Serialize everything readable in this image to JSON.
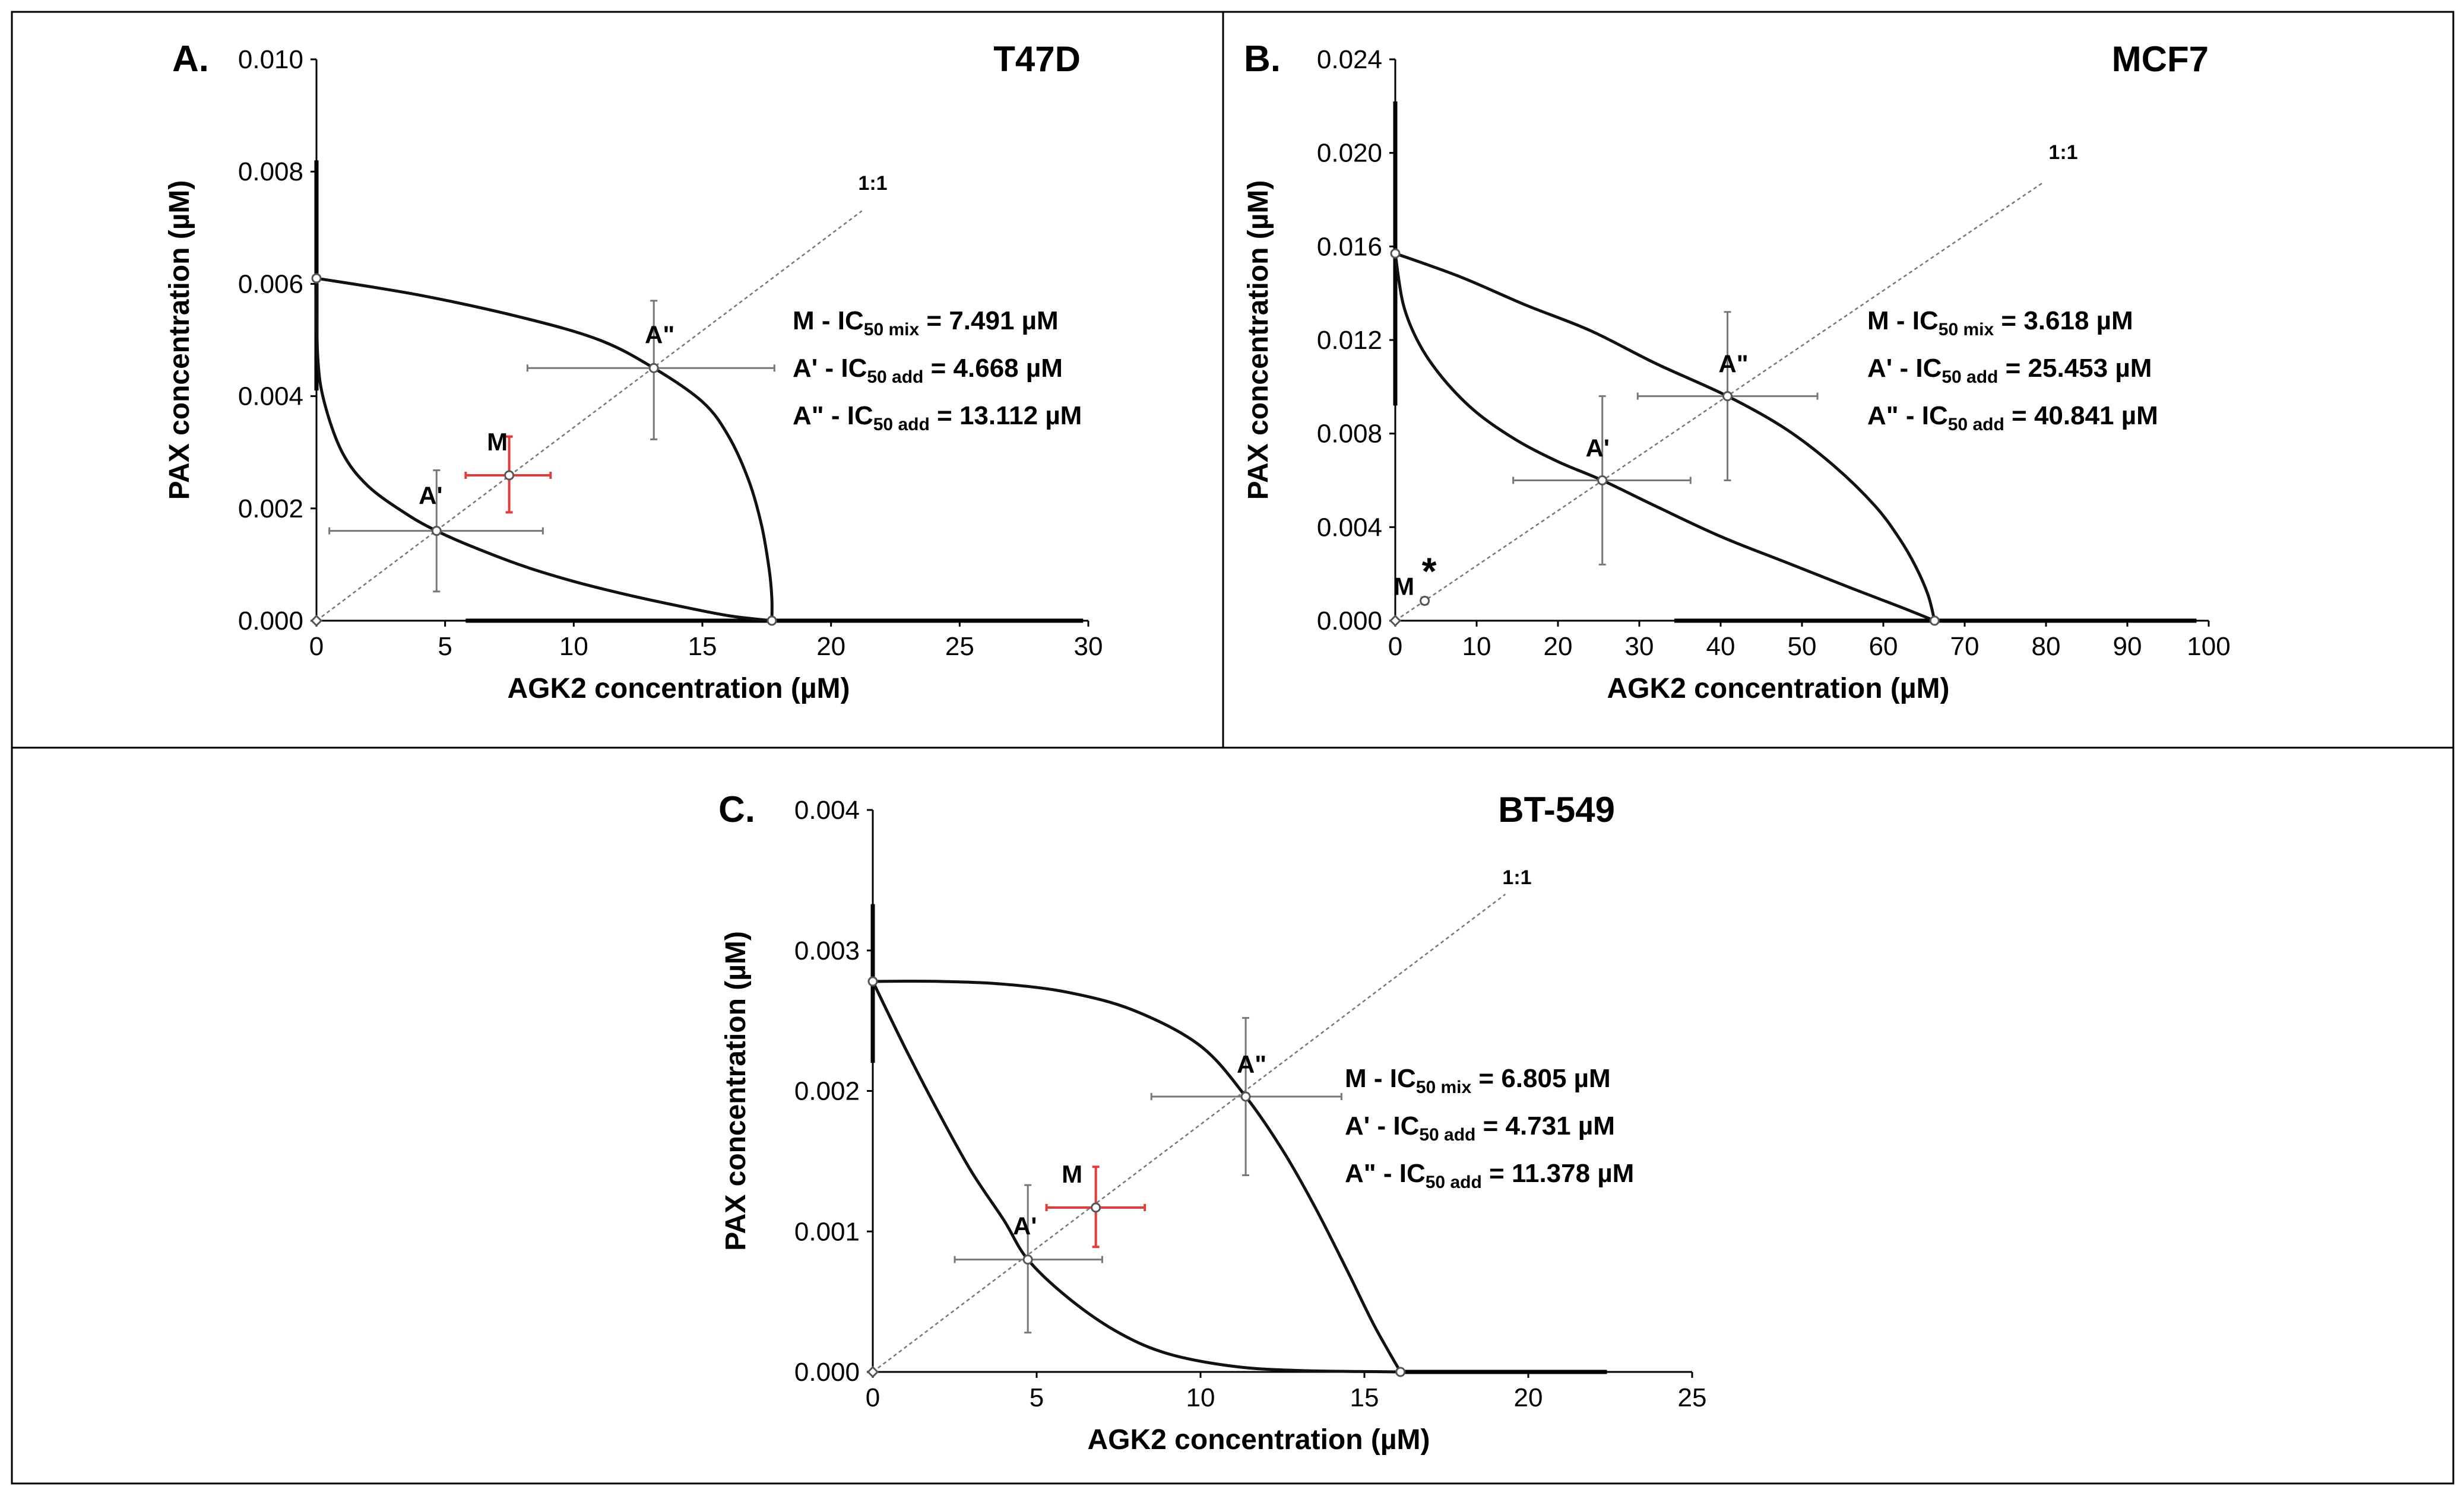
{
  "chart_data": [
    {
      "type": "line",
      "panel_label": "A.",
      "title": "T47D",
      "xlabel": "AGK2 concentration (µM)",
      "ylabel": "PAX concentration (µM)",
      "xlim": [
        0,
        30
      ],
      "ylim": [
        0,
        0.01
      ],
      "xticks": [
        0,
        5,
        10,
        15,
        20,
        25,
        30
      ],
      "xtick_labels": [
        "0",
        "5",
        "10",
        "15",
        "20",
        "25",
        "30"
      ],
      "yticks": [
        0,
        0.002,
        0.004,
        0.006,
        0.008,
        0.01
      ],
      "ytick_labels": [
        "0.000",
        "0.002",
        "0.004",
        "0.006",
        "0.008",
        "0.010"
      ],
      "ratio_label": "1:1",
      "diagonal_end": [
        21.2,
        0.0073
      ],
      "isobole_ic50_x": 17.7,
      "isobole_ic50_y": 0.0061,
      "lower_curve": [
        [
          0,
          0.0061
        ],
        [
          0.05,
          0.0047
        ],
        [
          0.3,
          0.0039
        ],
        [
          1.0,
          0.003
        ],
        [
          2.0,
          0.0024
        ],
        [
          3.5,
          0.0019
        ],
        [
          4.668,
          0.0016
        ],
        [
          6,
          0.00133
        ],
        [
          8,
          0.00098
        ],
        [
          10,
          0.0007
        ],
        [
          12,
          0.00047
        ],
        [
          14,
          0.00027
        ],
        [
          16,
          9e-05
        ],
        [
          17.7,
          0
        ]
      ],
      "upper_curve": [
        [
          0,
          0.0061
        ],
        [
          4,
          0.0058
        ],
        [
          8,
          0.0054
        ],
        [
          11,
          0.005
        ],
        [
          13.112,
          0.0045
        ],
        [
          15,
          0.0039
        ],
        [
          16,
          0.0033
        ],
        [
          16.8,
          0.0025
        ],
        [
          17.3,
          0.0017
        ],
        [
          17.6,
          0.0009
        ],
        [
          17.7,
          0.0004
        ],
        [
          17.7,
          0
        ]
      ],
      "thick_segments": [
        [
          [
            0,
            0.0082
          ],
          [
            0,
            0.0041
          ]
        ],
        [
          [
            5.8,
            0
          ],
          [
            29.8,
            0
          ]
        ]
      ],
      "points": [
        {
          "name": "A'",
          "x": 4.668,
          "y": 0.0016,
          "err_x": [
            0.5,
            8.8
          ],
          "err_y": [
            0.00052,
            0.00268
          ],
          "color": "gray"
        },
        {
          "name": "A\"",
          "x": 13.112,
          "y": 0.0045,
          "err_x": [
            8.2,
            17.8
          ],
          "err_y": [
            0.00323,
            0.0057
          ],
          "color": "gray"
        },
        {
          "name": "M",
          "x": 7.491,
          "y": 0.00259,
          "err_x": [
            5.8,
            9.1
          ],
          "err_y": [
            0.00193,
            0.00328
          ],
          "color": "red"
        }
      ],
      "annotations": [
        {
          "prefix": "M - IC",
          "sub": "50 mix",
          "value": "= 7.491 µM"
        },
        {
          "prefix": "A' - IC",
          "sub": "50 add",
          "value": "= 4.668 µM"
        },
        {
          "prefix": "A\" - IC",
          "sub": "50 add",
          "value": "= 13.112 µM"
        }
      ]
    },
    {
      "type": "line",
      "panel_label": "B.",
      "title": "MCF7",
      "xlabel": "AGK2 concentration (µM)",
      "ylabel": "PAX concentration (µM)",
      "xlim": [
        0,
        100
      ],
      "ylim": [
        0,
        0.024
      ],
      "xticks": [
        0,
        10,
        20,
        30,
        40,
        50,
        60,
        70,
        80,
        90,
        100
      ],
      "xtick_labels": [
        "0",
        "10",
        "20",
        "30",
        "40",
        "50",
        "60",
        "70",
        "80",
        "90",
        "100"
      ],
      "yticks": [
        0,
        0.004,
        0.008,
        0.012,
        0.016,
        0.02,
        0.024
      ],
      "ytick_labels": [
        "0.000",
        "0.004",
        "0.008",
        "0.012",
        "0.016",
        "0.020",
        "0.024"
      ],
      "ratio_label": "1:1",
      "diagonal_end": [
        79.5,
        0.0187
      ],
      "isobole_ic50_x": 66.3,
      "isobole_ic50_y": 0.0157,
      "lower_curve": [
        [
          0,
          0.0157
        ],
        [
          1,
          0.0135
        ],
        [
          3,
          0.0118
        ],
        [
          6,
          0.0103
        ],
        [
          10,
          0.0089
        ],
        [
          15,
          0.0077
        ],
        [
          20,
          0.0068
        ],
        [
          25.453,
          0.006
        ],
        [
          32,
          0.0049
        ],
        [
          40,
          0.0036
        ],
        [
          48,
          0.0025
        ],
        [
          56,
          0.0014
        ],
        [
          62,
          0.0006
        ],
        [
          66.3,
          0
        ]
      ],
      "upper_curve": [
        [
          0,
          0.0157
        ],
        [
          8,
          0.0147
        ],
        [
          16,
          0.0135
        ],
        [
          24,
          0.0124
        ],
        [
          32,
          0.011
        ],
        [
          40.841,
          0.0096
        ],
        [
          48,
          0.0082
        ],
        [
          54,
          0.0066
        ],
        [
          59,
          0.0049
        ],
        [
          62,
          0.0035
        ],
        [
          64,
          0.0023
        ],
        [
          65.5,
          0.0011
        ],
        [
          66.3,
          0
        ]
      ],
      "thick_segments": [
        [
          [
            0,
            0.0222
          ],
          [
            0,
            0.0092
          ]
        ],
        [
          [
            34.3,
            0
          ],
          [
            98.5,
            0
          ]
        ]
      ],
      "points": [
        {
          "name": "A'",
          "x": 25.453,
          "y": 0.006,
          "err_x": [
            14.5,
            36.3
          ],
          "err_y": [
            0.0024,
            0.0096
          ],
          "color": "gray"
        },
        {
          "name": "A\"",
          "x": 40.841,
          "y": 0.0096,
          "err_x": [
            29.8,
            51.9
          ],
          "err_y": [
            0.006,
            0.0132
          ],
          "color": "gray"
        },
        {
          "name": "M",
          "x": 3.618,
          "y": 0.00085,
          "err_x": [
            3.2,
            4.0
          ],
          "err_y": [
            0.0007,
            0.001
          ],
          "color": "gray",
          "star": "*"
        }
      ],
      "annotations": [
        {
          "prefix": "M - IC",
          "sub": "50 mix",
          "value": "= 3.618 µM"
        },
        {
          "prefix": "A' - IC",
          "sub": "50 add",
          "value": "= 25.453 µM"
        },
        {
          "prefix": "A\" - IC",
          "sub": "50 add",
          "value": "= 40.841 µM"
        }
      ]
    },
    {
      "type": "line",
      "panel_label": "C.",
      "title": "BT-549",
      "xlabel": "AGK2 concentration (µM)",
      "ylabel": "PAX concentration (µM)",
      "xlim": [
        0,
        25
      ],
      "ylim": [
        0,
        0.004
      ],
      "xticks": [
        0,
        5,
        10,
        15,
        20,
        25
      ],
      "xtick_labels": [
        "0",
        "5",
        "10",
        "15",
        "20",
        "25"
      ],
      "yticks": [
        0,
        0.001,
        0.002,
        0.003,
        0.004
      ],
      "ytick_labels": [
        "0.000",
        "0.001",
        "0.002",
        "0.003",
        "0.004"
      ],
      "ratio_label": "1:1",
      "diagonal_end": [
        19.3,
        0.0034
      ],
      "isobole_ic50_x": 16.1,
      "isobole_ic50_y": 0.00278,
      "lower_curve": [
        [
          0,
          0.00278
        ],
        [
          1,
          0.0023
        ],
        [
          2,
          0.00185
        ],
        [
          3,
          0.00143
        ],
        [
          4,
          0.00108
        ],
        [
          4.731,
          0.0008
        ],
        [
          6,
          0.00052
        ],
        [
          7.5,
          0.00028
        ],
        [
          9,
          0.00013
        ],
        [
          11,
          4e-05
        ],
        [
          13,
          1e-05
        ],
        [
          16.1,
          0
        ]
      ],
      "upper_curve": [
        [
          0,
          0.00278
        ],
        [
          2,
          0.00278
        ],
        [
          4,
          0.00276
        ],
        [
          6,
          0.0027
        ],
        [
          8,
          0.00257
        ],
        [
          10,
          0.00232
        ],
        [
          11.378,
          0.00196
        ],
        [
          12.5,
          0.00158
        ],
        [
          13.5,
          0.00117
        ],
        [
          14.5,
          0.00071
        ],
        [
          15.3,
          0.00033
        ],
        [
          16.1,
          0
        ]
      ],
      "thick_segments": [
        [
          [
            0,
            0.00333
          ],
          [
            0,
            0.0022
          ]
        ],
        [
          [
            16.1,
            0
          ],
          [
            22.4,
            0
          ]
        ]
      ],
      "points": [
        {
          "name": "A'",
          "x": 4.731,
          "y": 0.0008,
          "err_x": [
            2.5,
            7.0
          ],
          "err_y": [
            0.00028,
            0.00133
          ],
          "color": "gray"
        },
        {
          "name": "A\"",
          "x": 11.378,
          "y": 0.00196,
          "err_x": [
            8.5,
            14.3
          ],
          "err_y": [
            0.0014,
            0.00252
          ],
          "color": "gray"
        },
        {
          "name": "M",
          "x": 6.805,
          "y": 0.00117,
          "err_x": [
            5.3,
            8.3
          ],
          "err_y": [
            0.00089,
            0.00146
          ],
          "color": "red"
        }
      ],
      "annotations": [
        {
          "prefix": "M - IC",
          "sub": "50 mix",
          "value": "= 6.805 µM"
        },
        {
          "prefix": "A' - IC",
          "sub": "50 add",
          "value": "= 4.731 µM"
        },
        {
          "prefix": "A\" - IC",
          "sub": "50 add",
          "value": "= 11.378 µM"
        }
      ]
    }
  ]
}
